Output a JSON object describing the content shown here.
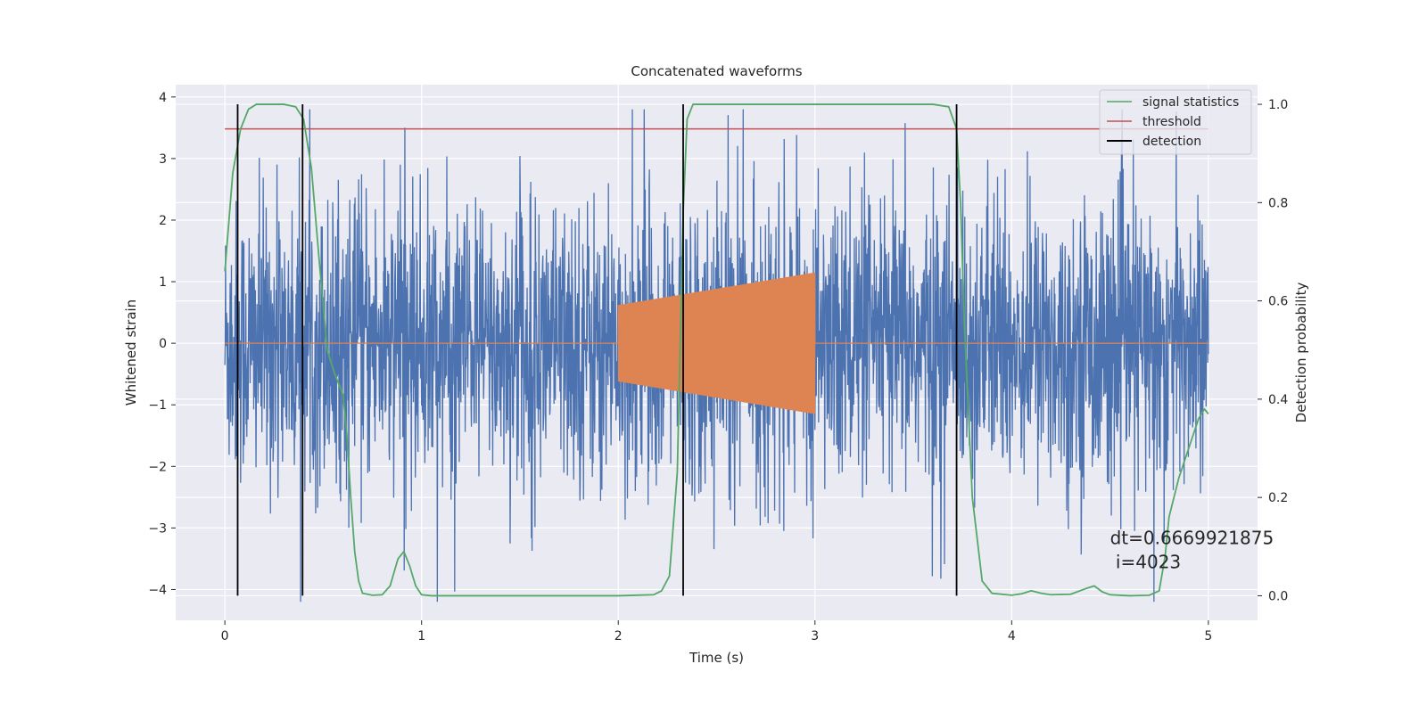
{
  "chart_data": {
    "type": "line",
    "title": "Concatenated waveforms",
    "xlabel": "Time (s)",
    "ylabel": "Whitened strain",
    "y2label": "Detection probability",
    "xlim": [
      -0.25,
      5.25
    ],
    "ylim": [
      -4.5,
      4.2
    ],
    "y2lim": [
      -0.05,
      1.04
    ],
    "xticks": [
      0,
      1,
      2,
      3,
      4,
      5
    ],
    "yticks": [
      -4,
      -3,
      -2,
      -1,
      0,
      1,
      2,
      3,
      4
    ],
    "y2ticks": [
      0.0,
      0.2,
      0.4,
      0.6,
      0.8,
      1.0
    ],
    "xtick_labels": [
      "0",
      "1",
      "2",
      "3",
      "4",
      "5"
    ],
    "ytick_labels": [
      "−4",
      "−3",
      "−2",
      "−1",
      "0",
      "1",
      "2",
      "3",
      "4"
    ],
    "y2tick_labels": [
      "0.0",
      "0.2",
      "0.4",
      "0.6",
      "0.8",
      "1.0"
    ],
    "grid": true,
    "legend_position": "top-right",
    "colors": {
      "strain": "#4c72b0",
      "injection": "#dd8452",
      "signal_statistics": "#55a868",
      "threshold": "#c44e52",
      "detection": "#000000",
      "plot_background": "#eaeaf2",
      "grid": "#ffffff"
    },
    "series": [
      {
        "name": "signal statistics",
        "axis": "right",
        "x": [
          0.0,
          0.04,
          0.08,
          0.12,
          0.16,
          0.2,
          0.3,
          0.36,
          0.4,
          0.44,
          0.48,
          0.52,
          0.56,
          0.6,
          0.62,
          0.64,
          0.66,
          0.68,
          0.7,
          0.75,
          0.8,
          0.84,
          0.88,
          0.91,
          0.94,
          0.97,
          1.0,
          1.05,
          1.1,
          1.5,
          2.0,
          2.18,
          2.22,
          2.26,
          2.3,
          2.33,
          2.35,
          2.38,
          2.45,
          3.0,
          3.6,
          3.68,
          3.72,
          3.74,
          3.76,
          3.8,
          3.85,
          3.9,
          4.0,
          4.05,
          4.1,
          4.15,
          4.2,
          4.3,
          4.38,
          4.42,
          4.46,
          4.5,
          4.6,
          4.7,
          4.75,
          4.78,
          4.8,
          4.85,
          4.9,
          4.95,
          4.98,
          5.0
        ],
        "y": [
          0.66,
          0.86,
          0.95,
          0.99,
          1.0,
          1.0,
          1.0,
          0.995,
          0.97,
          0.87,
          0.68,
          0.5,
          0.45,
          0.41,
          0.33,
          0.2,
          0.09,
          0.03,
          0.005,
          0.001,
          0.002,
          0.02,
          0.075,
          0.09,
          0.06,
          0.02,
          0.002,
          0.0,
          0.0,
          0.0,
          0.0,
          0.002,
          0.01,
          0.04,
          0.25,
          0.78,
          0.97,
          1.0,
          1.0,
          1.0,
          1.0,
          0.995,
          0.95,
          0.8,
          0.55,
          0.2,
          0.03,
          0.005,
          0.001,
          0.004,
          0.01,
          0.005,
          0.002,
          0.003,
          0.015,
          0.02,
          0.008,
          0.002,
          0.0,
          0.001,
          0.01,
          0.08,
          0.16,
          0.24,
          0.3,
          0.36,
          0.38,
          0.37
        ]
      },
      {
        "name": "threshold",
        "axis": "right",
        "x": [
          0.0,
          5.0
        ],
        "y": [
          0.95,
          0.95
        ]
      },
      {
        "name": "detection",
        "axis": "right",
        "type": "vlines",
        "x": [
          0.065,
          0.395,
          2.33,
          3.72
        ],
        "ymin": 0.0,
        "ymax": 1.0
      },
      {
        "name": "",
        "role": "whitened-strain-noise",
        "axis": "left",
        "xrange": [
          0.0,
          5.0
        ],
        "typical_amplitude": 1.2,
        "peak_range": [
          -4.2,
          3.8
        ]
      },
      {
        "name": "",
        "role": "injected-waveform",
        "axis": "left",
        "xrange": [
          2.0,
          3.0
        ],
        "amplitude_start": 0.62,
        "amplitude_end": 1.15,
        "baseline": 0.0
      }
    ],
    "legend": [
      "signal statistics",
      "threshold",
      "detection"
    ],
    "annotation": {
      "line1": "dt=0.6669921875",
      "line2": " i=4023",
      "x": 4.5,
      "y": 0.105
    }
  }
}
